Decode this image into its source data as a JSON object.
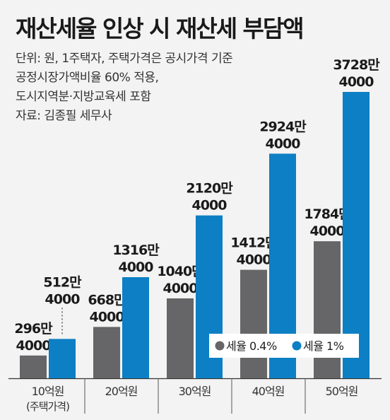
{
  "title": "재산세율 인상 시 재산세 부담액",
  "notes": [
    "단위: 원, 1주택자, 주택가격은 공시가격 기준",
    "공정시장가액비율 60% 적용,",
    "도시지역분·지방교육세 포함",
    "자료: 김종필 세무사"
  ],
  "colors": {
    "series_0": "#666668",
    "series_1": "#0d7fc4",
    "background": "#f3f3f3"
  },
  "chart_data": {
    "type": "bar",
    "categories": [
      "10억원",
      "20억원",
      "30억원",
      "40억원",
      "50억원"
    ],
    "category_sublabels": [
      "(주택가격)",
      "",
      "",
      "",
      ""
    ],
    "series": [
      {
        "name": "세율 0.4%",
        "values": [
          2964000,
          6684000,
          10404000,
          14124000,
          17844000
        ],
        "labels": [
          [
            "296만",
            "4000"
          ],
          [
            "668만",
            "4000"
          ],
          [
            "1040만",
            "4000"
          ],
          [
            "1412만",
            "4000"
          ],
          [
            "1784만",
            "4000"
          ]
        ]
      },
      {
        "name": "세율 1%",
        "values": [
          5124000,
          13164000,
          21204000,
          29244000,
          37284000
        ],
        "labels": [
          [
            "512만",
            "4000"
          ],
          [
            "1316만",
            "4000"
          ],
          [
            "2120만",
            "4000"
          ],
          [
            "2924만",
            "4000"
          ],
          [
            "3728만",
            "4000"
          ]
        ]
      }
    ],
    "legend_position": "bottom-right",
    "grid": false
  }
}
